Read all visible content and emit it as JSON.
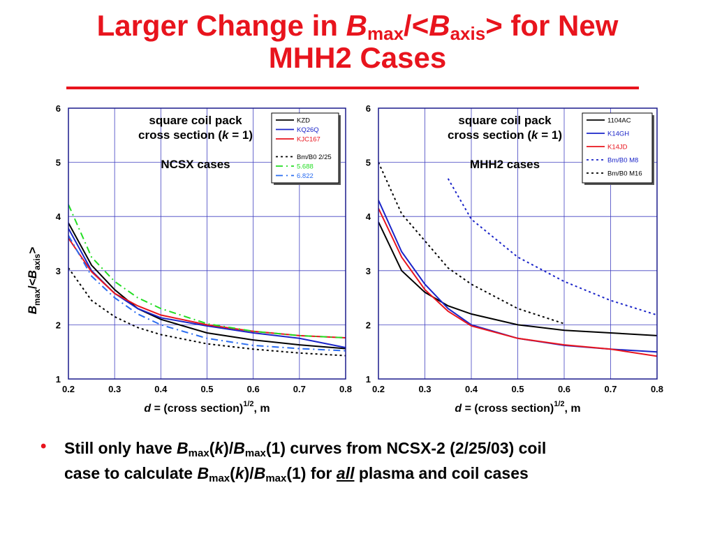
{
  "title": {
    "t1": "Larger Change in ",
    "B": "B",
    "max": "max",
    "slash_lt": "/<",
    "axis": "axis",
    "t2": "> for New",
    "line2": "MHH2 Cases"
  },
  "colors": {
    "title": "#e8141d",
    "grid": "#4040c0",
    "frame": "#1a1a8c"
  },
  "y_axis_label": {
    "B1": "B",
    "max": "max",
    "mid": "/<",
    "B2": "B",
    "axis": "axis",
    "end": ">"
  },
  "chart_data": [
    {
      "type": "line",
      "annotation_lines": [
        "square coil pack",
        "cross section (",
        "k",
        " = 1)"
      ],
      "subtitle": "NCSX cases",
      "xlabel": {
        "d": "d",
        "eq": " = (cross section)",
        "sup": "1/2",
        "unit": ", m"
      },
      "xlim": [
        0.2,
        0.8
      ],
      "ylim": [
        1,
        6
      ],
      "x_ticks": [
        "0.2",
        "0.3",
        "0.4",
        "0.5",
        "0.6",
        "0.7",
        "0.8"
      ],
      "y_ticks": [
        "1",
        "2",
        "3",
        "4",
        "5",
        "6"
      ],
      "grid": true,
      "legend_position": "top-right",
      "x": [
        0.2,
        0.25,
        0.3,
        0.35,
        0.4,
        0.5,
        0.6,
        0.7,
        0.8
      ],
      "series": [
        {
          "name": "KZD",
          "color": "#000000",
          "dash": "",
          "values": [
            3.88,
            3.1,
            2.65,
            2.3,
            2.1,
            1.85,
            1.72,
            1.63,
            1.56
          ]
        },
        {
          "name": "KQ26Q",
          "color": "#1a24c8",
          "dash": "",
          "values": [
            3.78,
            3.0,
            2.58,
            2.3,
            2.13,
            1.98,
            1.85,
            1.75,
            1.58
          ]
        },
        {
          "name": "KJC167",
          "color": "#e8141d",
          "dash": "",
          "values": [
            3.6,
            2.98,
            2.58,
            2.35,
            2.18,
            2.0,
            1.88,
            1.8,
            1.76
          ]
        },
        {
          "name": "Bm/B0 2/25",
          "color": "#000000",
          "dash": "3,4",
          "values": [
            3.05,
            2.45,
            2.15,
            1.95,
            1.82,
            1.65,
            1.55,
            1.48,
            1.43
          ]
        },
        {
          "name": "5.688",
          "color": "#22dd22",
          "dash": "10,5,2,5",
          "values": [
            4.22,
            3.25,
            2.8,
            2.5,
            2.3,
            2.02,
            1.88,
            1.8,
            1.76
          ]
        },
        {
          "name": "6.822",
          "color": "#2a6cf0",
          "dash": "10,5,2,5",
          "values": [
            3.65,
            2.9,
            2.5,
            2.2,
            2.0,
            1.75,
            1.62,
            1.56,
            1.52
          ]
        }
      ]
    },
    {
      "type": "line",
      "annotation_lines": [
        "square coil pack",
        "cross section (",
        "k",
        " = 1)"
      ],
      "subtitle": "MHH2 cases",
      "xlabel": {
        "d": "d",
        "eq": " = (cross section)",
        "sup": "1/2",
        "unit": ", m"
      },
      "xlim": [
        0.2,
        0.8
      ],
      "ylim": [
        1,
        6
      ],
      "x_ticks": [
        "0.2",
        "0.3",
        "0.4",
        "0.5",
        "0.6",
        "0.7",
        "0.8"
      ],
      "y_ticks": [
        "1",
        "2",
        "3",
        "4",
        "5",
        "6"
      ],
      "grid": true,
      "legend_position": "top-right",
      "x": [
        0.2,
        0.25,
        0.3,
        0.35,
        0.4,
        0.5,
        0.6,
        0.7,
        0.8
      ],
      "series": [
        {
          "name": "1104AC",
          "color": "#000000",
          "dash": "",
          "values": [
            3.9,
            3.0,
            2.6,
            2.35,
            2.2,
            2.0,
            1.9,
            1.85,
            1.8
          ]
        },
        {
          "name": "K14GH",
          "color": "#1a24c8",
          "dash": "",
          "values": [
            4.3,
            3.35,
            2.75,
            2.3,
            2.0,
            1.75,
            1.62,
            1.55,
            1.5
          ]
        },
        {
          "name": "K14JD",
          "color": "#e8141d",
          "dash": "",
          "values": [
            4.15,
            3.25,
            2.65,
            2.25,
            1.98,
            1.75,
            1.63,
            1.55,
            1.42
          ]
        },
        {
          "name": "Bm/B0 M8",
          "color": "#1a24c8",
          "dash": "3,4",
          "values": [
            null,
            null,
            null,
            4.7,
            3.95,
            3.25,
            2.8,
            2.45,
            2.18
          ]
        },
        {
          "name": "Bm/B0 M16",
          "color": "#000000",
          "dash": "3,4",
          "values": [
            5.0,
            4.05,
            3.55,
            3.05,
            2.75,
            2.3,
            2.02,
            null,
            null
          ]
        }
      ]
    }
  ],
  "bullet": {
    "symbol": "•",
    "l1_a": "Still only have ",
    "B": "B",
    "max": "max",
    "paren_k_open": "(",
    "k": "k",
    "paren_k_close": ")/",
    "l1_b": "(1) curves from NCSX-2 (2/25/03) coil",
    "l2_a": "case to calculate ",
    "l2_b": "(1) for ",
    "all": "all",
    "l2_c": " plasma and coil cases"
  }
}
